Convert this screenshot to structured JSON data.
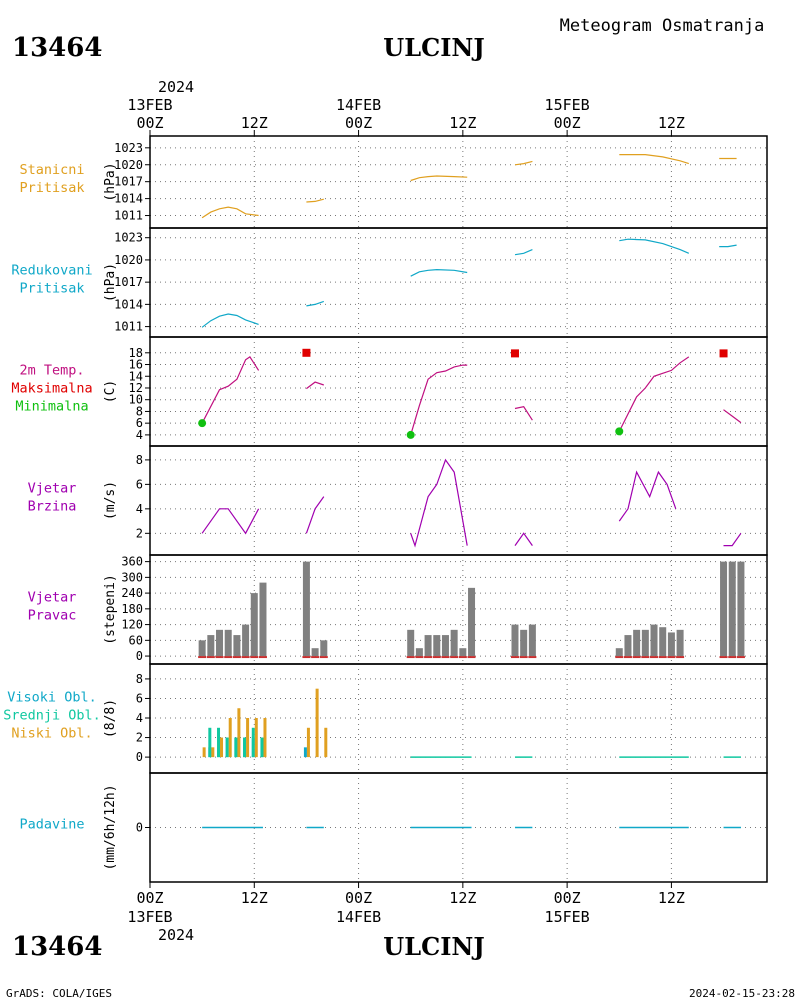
{
  "header": {
    "station_id": "13464",
    "station_name": "ULCINJ",
    "subtitle": "Meteogram Osmatranja",
    "credit": "GrADS: COLA/IGES",
    "timestamp": "2024-02-15-23:28"
  },
  "time_axis": {
    "start": "2024-02-13T00Z",
    "end": "2024-02-15T23Z",
    "year_label": "2024",
    "ticks": [
      {
        "t": 0,
        "label": "00Z",
        "date": "13FEB"
      },
      {
        "t": 12,
        "label": "12Z",
        "date": ""
      },
      {
        "t": 24,
        "label": "00Z",
        "date": "14FEB"
      },
      {
        "t": 36,
        "label": "12Z",
        "date": ""
      },
      {
        "t": 48,
        "label": "00Z",
        "date": "15FEB"
      },
      {
        "t": 60,
        "label": "12Z",
        "date": ""
      }
    ]
  },
  "colors": {
    "pressure": "#e0a020",
    "reduced_pressure": "#10a8c8",
    "temperature": "#c01080",
    "tmax": "#e00000",
    "tmin": "#10c010",
    "wind_speed": "#a000b0",
    "wind_dir": "#808080",
    "wind_dir_base": "#c83030",
    "cloud_high": "#10a8c8",
    "cloud_mid": "#10c8a0",
    "cloud_low": "#e0a020",
    "precip": "#10a8c8"
  },
  "chart_data": [
    {
      "id": "stp",
      "type": "line",
      "labels": [
        "Stanicni",
        "Pritisak"
      ],
      "ylabel": "(hPa)",
      "yticks": [
        1011,
        1014,
        1017,
        1020,
        1023
      ],
      "ylim": [
        1009.5,
        1023.5
      ],
      "segments": [
        [
          [
            6,
            1010.6
          ],
          [
            7,
            1011.6
          ],
          [
            8,
            1012.2
          ],
          [
            9,
            1012.5
          ],
          [
            10,
            1012.2
          ],
          [
            11,
            1011.3
          ],
          [
            12.5,
            1011.0
          ]
        ],
        [
          [
            18,
            1013.4
          ],
          [
            19,
            1013.5
          ],
          [
            20,
            1013.9
          ]
        ],
        [
          [
            30,
            1017.2
          ],
          [
            31,
            1017.7
          ],
          [
            32,
            1017.9
          ],
          [
            33,
            1018.0
          ],
          [
            35,
            1017.9
          ],
          [
            36.5,
            1017.8
          ]
        ],
        [
          [
            42,
            1020.0
          ],
          [
            43,
            1020.2
          ],
          [
            44,
            1020.6
          ]
        ],
        [
          [
            54,
            1021.8
          ],
          [
            57,
            1021.8
          ],
          [
            59,
            1021.4
          ],
          [
            61,
            1020.7
          ],
          [
            62,
            1020.2
          ]
        ],
        [
          [
            65.5,
            1021.1
          ],
          [
            67.5,
            1021.1
          ]
        ]
      ]
    },
    {
      "id": "mslp",
      "type": "line",
      "labels": [
        "Redukovani",
        "Pritisak"
      ],
      "ylabel": "(hPa)",
      "yticks": [
        1011,
        1014,
        1017,
        1020,
        1023
      ],
      "ylim": [
        1010,
        1023.5
      ],
      "segments": [
        [
          [
            6,
            1010.9
          ],
          [
            7,
            1011.8
          ],
          [
            8,
            1012.4
          ],
          [
            9,
            1012.7
          ],
          [
            10,
            1012.5
          ],
          [
            11,
            1011.9
          ],
          [
            12.5,
            1011.3
          ]
        ],
        [
          [
            18,
            1013.8
          ],
          [
            19,
            1014.0
          ],
          [
            20,
            1014.4
          ]
        ],
        [
          [
            30,
            1017.8
          ],
          [
            31,
            1018.4
          ],
          [
            32,
            1018.6
          ],
          [
            33,
            1018.7
          ],
          [
            35,
            1018.6
          ],
          [
            36.5,
            1018.3
          ]
        ],
        [
          [
            42,
            1020.7
          ],
          [
            43,
            1020.9
          ],
          [
            44,
            1021.4
          ]
        ],
        [
          [
            54,
            1022.6
          ],
          [
            55,
            1022.8
          ],
          [
            57,
            1022.7
          ],
          [
            59,
            1022.2
          ],
          [
            61,
            1021.4
          ],
          [
            62,
            1020.9
          ]
        ],
        [
          [
            65.5,
            1021.8
          ],
          [
            66.5,
            1021.8
          ],
          [
            67.5,
            1022.0
          ]
        ]
      ]
    },
    {
      "id": "temp",
      "type": "line",
      "labels": [
        "2m Temp.",
        "Maksimalna",
        "Minimalna"
      ],
      "ylabel": "(C)",
      "yticks": [
        4,
        6,
        8,
        10,
        12,
        14,
        16,
        18
      ],
      "ylim": [
        3.3,
        19.5
      ],
      "segments": [
        [
          [
            6,
            6.0
          ],
          [
            8,
            11.7
          ],
          [
            9,
            12.3
          ],
          [
            10,
            13.5
          ],
          [
            11,
            16.8
          ],
          [
            11.5,
            17.3
          ],
          [
            12.5,
            15.0
          ]
        ],
        [
          [
            18,
            11.9
          ],
          [
            19,
            13.0
          ],
          [
            20,
            12.5
          ]
        ],
        [
          [
            30,
            4.0
          ],
          [
            31,
            9.0
          ],
          [
            32,
            13.5
          ],
          [
            33,
            14.6
          ],
          [
            34,
            14.9
          ],
          [
            35,
            15.6
          ],
          [
            36,
            15.9
          ],
          [
            36.5,
            15.9
          ]
        ],
        [
          [
            42,
            8.5
          ],
          [
            43,
            8.8
          ],
          [
            44,
            6.5
          ]
        ],
        [
          [
            54,
            4.6
          ],
          [
            56,
            10.5
          ],
          [
            57,
            12.0
          ],
          [
            58,
            14.0
          ],
          [
            59,
            14.5
          ],
          [
            60,
            15.0
          ],
          [
            61,
            16.3
          ],
          [
            62,
            17.3
          ]
        ],
        [
          [
            66,
            8.3
          ],
          [
            67,
            7.2
          ],
          [
            68,
            6.1
          ]
        ]
      ],
      "tmax": [
        {
          "t": 18,
          "v": 18.0
        },
        {
          "t": 42,
          "v": 17.9
        },
        {
          "t": 66,
          "v": 17.9
        }
      ],
      "tmin": [
        {
          "t": 6,
          "v": 6.0
        },
        {
          "t": 30,
          "v": 4.0
        },
        {
          "t": 54,
          "v": 4.6
        }
      ]
    },
    {
      "id": "wspd",
      "type": "line",
      "labels": [
        "Vjetar",
        "Brzina"
      ],
      "ylabel": "(m/s)",
      "yticks": [
        2,
        4,
        6,
        8
      ],
      "ylim": [
        0.8,
        8.4
      ],
      "segments": [
        [
          [
            6,
            2
          ],
          [
            8,
            4
          ],
          [
            9,
            4
          ],
          [
            11,
            2
          ],
          [
            12.5,
            4
          ]
        ],
        [
          [
            18,
            2
          ],
          [
            19,
            4
          ],
          [
            20,
            5
          ]
        ],
        [
          [
            30,
            2
          ],
          [
            30.5,
            1
          ],
          [
            32,
            5
          ],
          [
            33,
            6
          ],
          [
            34,
            8
          ],
          [
            35,
            7
          ],
          [
            36.5,
            1
          ]
        ],
        [
          [
            42,
            1
          ],
          [
            43,
            2
          ],
          [
            44,
            1
          ]
        ],
        [
          [
            54,
            3
          ],
          [
            55,
            4
          ],
          [
            56,
            7
          ],
          [
            57.5,
            5
          ],
          [
            58.5,
            7
          ],
          [
            59.5,
            6
          ],
          [
            60.5,
            4
          ]
        ],
        [
          [
            66,
            1
          ],
          [
            67,
            1
          ],
          [
            68,
            2
          ]
        ]
      ]
    },
    {
      "id": "wdir",
      "type": "bar",
      "labels": [
        "Vjetar",
        "Pravac"
      ],
      "ylabel": "(stepeni)",
      "yticks": [
        0,
        60,
        120,
        180,
        240,
        300,
        360
      ],
      "ylim": [
        -15,
        370
      ],
      "bars": [
        [
          6,
          60
        ],
        [
          7,
          80
        ],
        [
          8,
          100
        ],
        [
          9,
          100
        ],
        [
          10,
          80
        ],
        [
          11,
          120
        ],
        [
          12,
          240
        ],
        [
          13,
          280
        ],
        [
          18,
          360
        ],
        [
          19,
          30
        ],
        [
          20,
          60
        ],
        [
          30,
          100
        ],
        [
          31,
          30
        ],
        [
          32,
          80
        ],
        [
          33,
          80
        ],
        [
          34,
          80
        ],
        [
          35,
          100
        ],
        [
          36,
          30
        ],
        [
          37,
          260
        ],
        [
          42,
          120
        ],
        [
          43,
          100
        ],
        [
          44,
          120
        ],
        [
          54,
          30
        ],
        [
          55,
          80
        ],
        [
          56,
          100
        ],
        [
          57,
          100
        ],
        [
          58,
          120
        ],
        [
          59,
          110
        ],
        [
          60,
          90
        ],
        [
          61,
          100
        ],
        [
          66,
          360
        ],
        [
          67,
          360
        ],
        [
          68,
          360
        ]
      ]
    },
    {
      "id": "cloud",
      "type": "bar",
      "labels": [
        "Visoki Obl.",
        "Srednji Obl.",
        "Niski Obl."
      ],
      "ylabel": "(8/8)",
      "yticks": [
        0,
        2,
        4,
        6,
        8
      ],
      "ylim": [
        -0.5,
        8.4
      ],
      "series": [
        {
          "name": "Visoki Obl.",
          "bars": [
            [
              6,
              0
            ],
            [
              7,
              1
            ],
            [
              8,
              1
            ],
            [
              9,
              2
            ],
            [
              10,
              2
            ],
            [
              11,
              2
            ],
            [
              12,
              2
            ],
            [
              13,
              2
            ],
            [
              18,
              1
            ],
            [
              19,
              0
            ],
            [
              20,
              0
            ]
          ]
        },
        {
          "name": "Srednji Obl.",
          "bars": [
            [
              6,
              0
            ],
            [
              7,
              3
            ],
            [
              8,
              3
            ],
            [
              9,
              2
            ],
            [
              10,
              2
            ],
            [
              11,
              2
            ],
            [
              12,
              3
            ],
            [
              13,
              2
            ],
            [
              18,
              0
            ],
            [
              19,
              0
            ],
            [
              20,
              0
            ]
          ]
        },
        {
          "name": "Niski Obl.",
          "bars": [
            [
              6,
              1
            ],
            [
              7,
              1
            ],
            [
              8,
              2
            ],
            [
              9,
              4
            ],
            [
              10,
              5
            ],
            [
              11,
              4
            ],
            [
              12,
              4
            ],
            [
              13,
              4
            ],
            [
              18,
              3
            ],
            [
              19,
              7
            ],
            [
              20,
              3
            ]
          ]
        }
      ],
      "zero_segments": [
        [
          30,
          37
        ],
        [
          42,
          44
        ],
        [
          54,
          62
        ],
        [
          66,
          68
        ]
      ]
    },
    {
      "id": "precip",
      "type": "bar",
      "labels": [
        "Padavine"
      ],
      "ylabel": "(mm/6h/12h)",
      "yticks": [
        0
      ],
      "ylim": [
        -5,
        5
      ],
      "zero_segments": [
        [
          6,
          13
        ],
        [
          18,
          20
        ],
        [
          30,
          37
        ],
        [
          42,
          44
        ],
        [
          54,
          62
        ],
        [
          66,
          68
        ]
      ]
    }
  ]
}
